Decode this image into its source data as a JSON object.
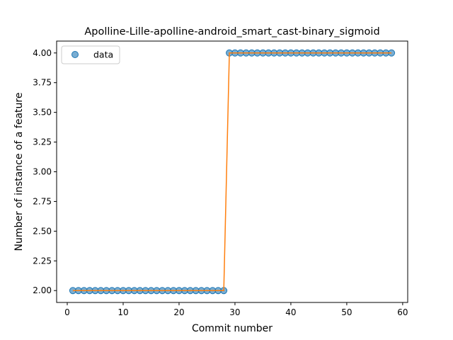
{
  "chart_data": {
    "type": "scatter",
    "title": "Apolline-Lille-apolline-android_smart_cast-binary_sigmoid",
    "xlabel": "Commit number",
    "ylabel": "Number of instance of a feature",
    "xlim": [
      -1.9,
      60.9
    ],
    "ylim": [
      1.9,
      4.1
    ],
    "xticks": [
      0,
      10,
      20,
      30,
      40,
      50,
      60
    ],
    "yticks": [
      2.0,
      2.25,
      2.5,
      2.75,
      3.0,
      3.25,
      3.5,
      3.75,
      4.0
    ],
    "xtick_labels": [
      "0",
      "10",
      "20",
      "30",
      "40",
      "50",
      "60"
    ],
    "ytick_labels": [
      "2.00",
      "2.25",
      "2.50",
      "2.75",
      "3.00",
      "3.25",
      "3.50",
      "3.75",
      "4.00"
    ],
    "grid": false,
    "legend": {
      "position": "upper-left",
      "entries": [
        "data"
      ]
    },
    "series": [
      {
        "name": "data",
        "kind": "points",
        "color": "#1f77b4",
        "x": [
          1,
          2,
          3,
          4,
          5,
          6,
          7,
          8,
          9,
          10,
          11,
          12,
          13,
          14,
          15,
          16,
          17,
          18,
          19,
          20,
          21,
          22,
          23,
          24,
          25,
          26,
          27,
          28,
          29,
          30,
          31,
          32,
          33,
          34,
          35,
          36,
          37,
          38,
          39,
          40,
          41,
          42,
          43,
          44,
          45,
          46,
          47,
          48,
          49,
          50,
          51,
          52,
          53,
          54,
          55,
          56,
          57,
          58
        ],
        "y": [
          2,
          2,
          2,
          2,
          2,
          2,
          2,
          2,
          2,
          2,
          2,
          2,
          2,
          2,
          2,
          2,
          2,
          2,
          2,
          2,
          2,
          2,
          2,
          2,
          2,
          2,
          2,
          2,
          4,
          4,
          4,
          4,
          4,
          4,
          4,
          4,
          4,
          4,
          4,
          4,
          4,
          4,
          4,
          4,
          4,
          4,
          4,
          4,
          4,
          4,
          4,
          4,
          4,
          4,
          4,
          4,
          4,
          4
        ]
      },
      {
        "kind": "line",
        "color": "#ff7f0e",
        "x": [
          1,
          2,
          3,
          4,
          5,
          6,
          7,
          8,
          9,
          10,
          11,
          12,
          13,
          14,
          15,
          16,
          17,
          18,
          19,
          20,
          21,
          22,
          23,
          24,
          25,
          26,
          27,
          28,
          29,
          30,
          31,
          32,
          33,
          34,
          35,
          36,
          37,
          38,
          39,
          40,
          41,
          42,
          43,
          44,
          45,
          46,
          47,
          48,
          49,
          50,
          51,
          52,
          53,
          54,
          55,
          56,
          57,
          58
        ],
        "y": [
          2,
          2,
          2,
          2,
          2,
          2,
          2,
          2,
          2,
          2,
          2,
          2,
          2,
          2,
          2,
          2,
          2,
          2,
          2,
          2,
          2,
          2,
          2,
          2,
          2,
          2,
          2,
          2,
          4,
          4,
          4,
          4,
          4,
          4,
          4,
          4,
          4,
          4,
          4,
          4,
          4,
          4,
          4,
          4,
          4,
          4,
          4,
          4,
          4,
          4,
          4,
          4,
          4,
          4,
          4,
          4,
          4,
          4
        ]
      }
    ]
  }
}
